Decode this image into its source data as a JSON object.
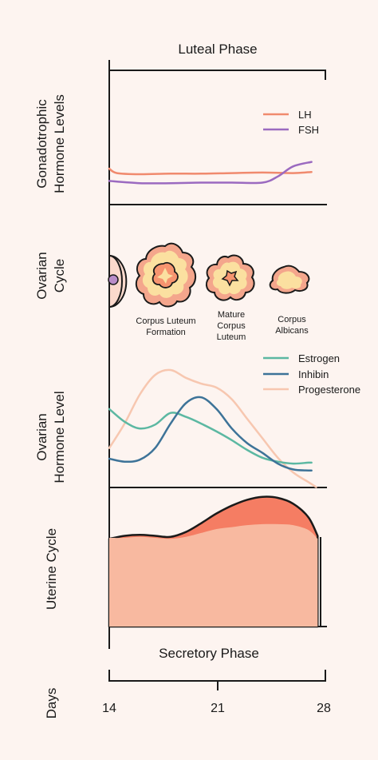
{
  "header": {
    "title": "Luteal Phase"
  },
  "footer": {
    "title": "Secretory Phase"
  },
  "panels": {
    "gonadotrophic": {
      "label_line1": "Gonadotrophic",
      "label_line2": "Hormone Levels"
    },
    "ovarian_cycle": {
      "label_line1": "Ovarian",
      "label_line2": "Cycle"
    },
    "ovarian_hormone": {
      "label_line1": "Ovarian",
      "label_line2": "Hormone Level"
    },
    "uterine": {
      "label": "Uterine Cycle"
    }
  },
  "days": {
    "label": "Days",
    "ticks": [
      "14",
      "21",
      "28"
    ]
  },
  "ovarian_stages": [
    {
      "lines": [
        "Corpus Luteum",
        "Formation"
      ]
    },
    {
      "lines": [
        "Mature",
        "Corpus",
        "Luteum"
      ]
    },
    {
      "lines": [
        "Corpus",
        "Albicans"
      ]
    }
  ],
  "colors": {
    "background": "#fdf4f0",
    "axis": "#1a1a1a",
    "LH": "#f08a6e",
    "FSH": "#9b6ac0",
    "Estrogen": "#5cb8a2",
    "Inhibin": "#3d7398",
    "Progesterone": "#f7c7b0",
    "endometrium_base": "#f8b9a0",
    "endometrium_top": "#f57d63"
  },
  "chart_data": [
    {
      "type": "line",
      "title": "",
      "xlim": [
        14,
        28
      ],
      "series": [
        {
          "name": "LH",
          "x": [
            14,
            14.5,
            16,
            18,
            20,
            22,
            24,
            26,
            27.2
          ],
          "values": [
            0.3,
            0.22,
            0.2,
            0.21,
            0.21,
            0.22,
            0.23,
            0.22,
            0.24
          ]
        },
        {
          "name": "FSH",
          "x": [
            14,
            16,
            18,
            20,
            22,
            24,
            25,
            26,
            27.2
          ],
          "values": [
            0.08,
            0.04,
            0.04,
            0.05,
            0.05,
            0.05,
            0.16,
            0.34,
            0.42
          ]
        }
      ]
    },
    {
      "type": "line",
      "title": "",
      "xlim": [
        14,
        28
      ],
      "series": [
        {
          "name": "Estrogen",
          "x": [
            14,
            15,
            16,
            17,
            18,
            19,
            20,
            21,
            22,
            23,
            24,
            25,
            26,
            27,
            27.2
          ],
          "values": [
            0.6,
            0.47,
            0.4,
            0.44,
            0.56,
            0.52,
            0.45,
            0.37,
            0.28,
            0.18,
            0.1,
            0.06,
            0.04,
            0.05,
            0.05
          ]
        },
        {
          "name": "Inhibin",
          "x": [
            14,
            15,
            16,
            17,
            18,
            19,
            20,
            21,
            22,
            23,
            24,
            25,
            26,
            27,
            27.2
          ],
          "values": [
            0.09,
            0.06,
            0.08,
            0.2,
            0.45,
            0.66,
            0.72,
            0.6,
            0.4,
            0.25,
            0.15,
            0.04,
            -0.02,
            -0.03,
            -0.03
          ]
        },
        {
          "name": "Progesterone",
          "x": [
            14,
            15,
            16,
            17,
            18,
            19,
            20,
            21,
            22,
            23,
            24,
            25,
            26,
            27,
            27.5
          ],
          "values": [
            0.2,
            0.45,
            0.75,
            0.95,
            1.0,
            0.92,
            0.86,
            0.82,
            0.7,
            0.5,
            0.3,
            0.1,
            -0.05,
            -0.15,
            -0.2
          ]
        }
      ]
    },
    {
      "type": "area",
      "title": "",
      "xlim": [
        14,
        28
      ],
      "series": [
        {
          "name": "",
          "x": [
            14,
            15,
            16,
            17,
            18,
            19,
            20,
            21,
            22,
            23,
            24,
            25,
            26,
            27,
            27.6
          ],
          "values": [
            0.91,
            0.91,
            0.92,
            0.91,
            0.9,
            0.92,
            0.96,
            1.0,
            1.02,
            1.04,
            1.05,
            1.05,
            1.04,
            0.99,
            0.9
          ]
        },
        {
          "name": "",
          "x": [
            14,
            15,
            16,
            17,
            18,
            19,
            20,
            21,
            22,
            23,
            24,
            25,
            26,
            27,
            27.6
          ],
          "values": [
            0.9,
            0.93,
            0.94,
            0.93,
            0.92,
            0.97,
            1.06,
            1.16,
            1.24,
            1.3,
            1.33,
            1.32,
            1.26,
            1.12,
            0.93
          ]
        }
      ]
    }
  ]
}
